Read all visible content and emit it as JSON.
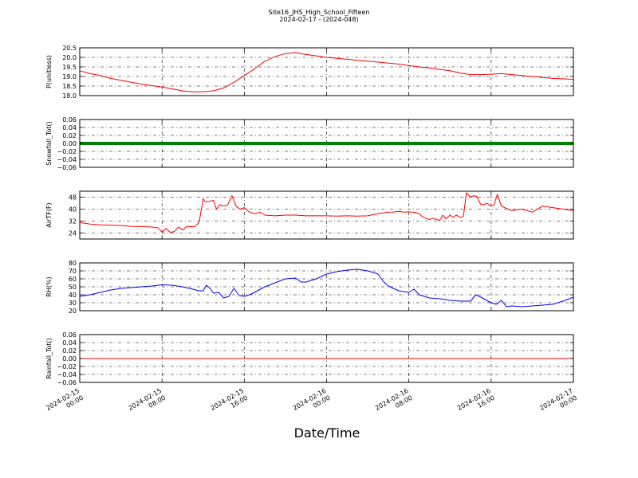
{
  "chart_data": {
    "title": "Site16_JHS_High_School_Fifteen",
    "subtitle": "2024-02-17 - (2024-048)",
    "xlabel": "Date/Time",
    "x_tick_labels": [
      [
        "2024-02-15",
        "00:00"
      ],
      [
        "2024-02-15",
        "08:00"
      ],
      [
        "2024-02-15",
        "16:00"
      ],
      [
        "2024-02-16",
        "00:00"
      ],
      [
        "2024-02-16",
        "08:00"
      ],
      [
        "2024-02-16",
        "16:00"
      ],
      [
        "2024-02-17",
        "00:00"
      ]
    ],
    "x_range_hours": [
      0,
      48
    ],
    "grid": true,
    "panels": [
      {
        "type": "line",
        "ylabel": "P(unitless)",
        "ylim": [
          18.0,
          20.5
        ],
        "yticks": [
          "18.0",
          "18.5",
          "19.0",
          "19.5",
          "20.0",
          "20.5"
        ],
        "ytick_values": [
          18.0,
          18.5,
          19.0,
          19.5,
          20.0,
          20.5
        ],
        "color": "#ff0000",
        "x": [
          0,
          1,
          2,
          3,
          4,
          5,
          6,
          7,
          8,
          9,
          10,
          11,
          12,
          13,
          14,
          15,
          16,
          17,
          18,
          19,
          20,
          21,
          22,
          23,
          24,
          25,
          26,
          27,
          28,
          29,
          30,
          31,
          32,
          33,
          34,
          35,
          36,
          37,
          38,
          39,
          40,
          41,
          42,
          43,
          44,
          45,
          46,
          47,
          48
        ],
        "y": [
          19.3,
          19.15,
          19.05,
          18.9,
          18.8,
          18.7,
          18.6,
          18.52,
          18.45,
          18.35,
          18.25,
          18.2,
          18.2,
          18.25,
          18.4,
          18.7,
          19.05,
          19.4,
          19.8,
          20.05,
          20.2,
          20.25,
          20.15,
          20.08,
          20.0,
          19.95,
          19.9,
          19.85,
          19.8,
          19.75,
          19.7,
          19.65,
          19.57,
          19.5,
          19.45,
          19.37,
          19.3,
          19.18,
          19.1,
          19.1,
          19.12,
          19.15,
          19.1,
          19.05,
          19.0,
          18.95,
          18.9,
          18.88,
          18.85
        ]
      },
      {
        "type": "line",
        "ylabel": "Snowfall_Tot()",
        "ylim": [
          -0.06,
          0.06
        ],
        "yticks": [
          "−0.06",
          "−0.04",
          "−0.02",
          "0.00",
          "0.02",
          "0.04",
          "0.06"
        ],
        "ytick_values": [
          -0.06,
          -0.04,
          -0.02,
          0.0,
          0.02,
          0.04,
          0.06
        ],
        "color": "#008000",
        "x": [
          0,
          48
        ],
        "y": [
          0.0,
          0.0
        ]
      },
      {
        "type": "line",
        "ylabel": "AirTF(F)",
        "ylim": [
          20,
          52
        ],
        "yticks": [
          "24",
          "32",
          "40",
          "48"
        ],
        "ytick_values": [
          24,
          32,
          40,
          48
        ],
        "color": "#ff0000",
        "x": [
          0,
          1,
          2,
          3,
          4,
          5,
          6,
          7,
          7.6,
          8,
          8.4,
          8.8,
          9.2,
          9.6,
          10,
          10.4,
          10.8,
          11.2,
          11.6,
          12,
          12.2,
          12.5,
          13,
          13.3,
          13.6,
          14,
          14.4,
          14.8,
          15.2,
          15.6,
          16,
          16.5,
          17,
          17.5,
          18,
          19,
          20,
          21,
          22,
          23,
          24,
          25,
          26,
          27,
          28,
          29,
          30,
          30.5,
          31,
          31.5,
          32,
          32.3,
          32.6,
          33,
          33.3,
          33.6,
          34,
          34.3,
          35,
          35.3,
          35.6,
          36,
          36.3,
          36.6,
          37,
          37.3,
          37.6,
          38,
          38.3,
          38.6,
          39,
          39.3,
          39.6,
          40,
          40.3,
          40.6,
          41,
          42,
          43,
          44,
          45,
          46,
          47,
          48
        ],
        "y": [
          31,
          30,
          29.5,
          29.3,
          29,
          28.5,
          28.3,
          28,
          27.5,
          24.5,
          27,
          24.5,
          25,
          28,
          26,
          28.5,
          28.2,
          28.5,
          31,
          47,
          45,
          45,
          46,
          40,
          43,
          42,
          43,
          49,
          42,
          40,
          41,
          38,
          37,
          38,
          36,
          35.5,
          36,
          36,
          35.5,
          35.5,
          35.5,
          35.3,
          35.5,
          35.3,
          35.5,
          37,
          38,
          38,
          38.5,
          38,
          38.2,
          38,
          37.8,
          37,
          35,
          34,
          33,
          34,
          32.5,
          36,
          33.5,
          36,
          34.5,
          36,
          34.5,
          35,
          51,
          48,
          49,
          48.5,
          43,
          43,
          44,
          42,
          43,
          50,
          42,
          39,
          40,
          38,
          42,
          41,
          40,
          39
        ]
      },
      {
        "type": "line",
        "ylabel": "RH(%)",
        "ylim": [
          20,
          80
        ],
        "yticks": [
          "20",
          "30",
          "40",
          "50",
          "60",
          "70",
          "80"
        ],
        "ytick_values": [
          20,
          30,
          40,
          50,
          60,
          70,
          80
        ],
        "color": "#0000ff",
        "x": [
          0,
          1,
          2,
          3,
          4,
          5,
          6,
          7,
          8,
          9,
          10,
          11,
          11.5,
          12,
          12.3,
          12.6,
          13,
          13.5,
          14,
          14.5,
          15,
          15.5,
          16,
          16.5,
          17,
          18,
          19,
          20,
          21,
          21.5,
          22,
          23,
          24,
          25,
          26,
          27,
          28,
          29,
          29.5,
          30,
          30.5,
          31,
          32,
          32.5,
          33,
          34,
          35,
          36,
          37,
          38,
          38.5,
          39,
          40,
          40.5,
          41,
          41.5,
          42,
          43,
          44,
          45,
          46,
          47,
          48
        ],
        "y": [
          38,
          40,
          43,
          46,
          48,
          49,
          50,
          51,
          52.5,
          52,
          50,
          47,
          45,
          45,
          52,
          49,
          42,
          43,
          36,
          38,
          48,
          39,
          38,
          40,
          43,
          50,
          55,
          60,
          61,
          56,
          56,
          60,
          66,
          69,
          71,
          72,
          70,
          66,
          57,
          51,
          48,
          45,
          43,
          47,
          40,
          36,
          35,
          33,
          32,
          32,
          40,
          37,
          30,
          28,
          33,
          25,
          26,
          25,
          26,
          27,
          28,
          32,
          37
        ]
      },
      {
        "type": "line",
        "ylabel": "Rainfall_Tot()",
        "ylim": [
          -0.06,
          0.06
        ],
        "yticks": [
          "−0.06",
          "−0.04",
          "−0.02",
          "0.00",
          "0.02",
          "0.04",
          "0.06"
        ],
        "ytick_values": [
          -0.06,
          -0.04,
          -0.02,
          0.0,
          0.02,
          0.04,
          0.06
        ],
        "color": "#ff0000",
        "x": [
          0,
          48
        ],
        "y": [
          0.0,
          0.0
        ]
      }
    ]
  }
}
